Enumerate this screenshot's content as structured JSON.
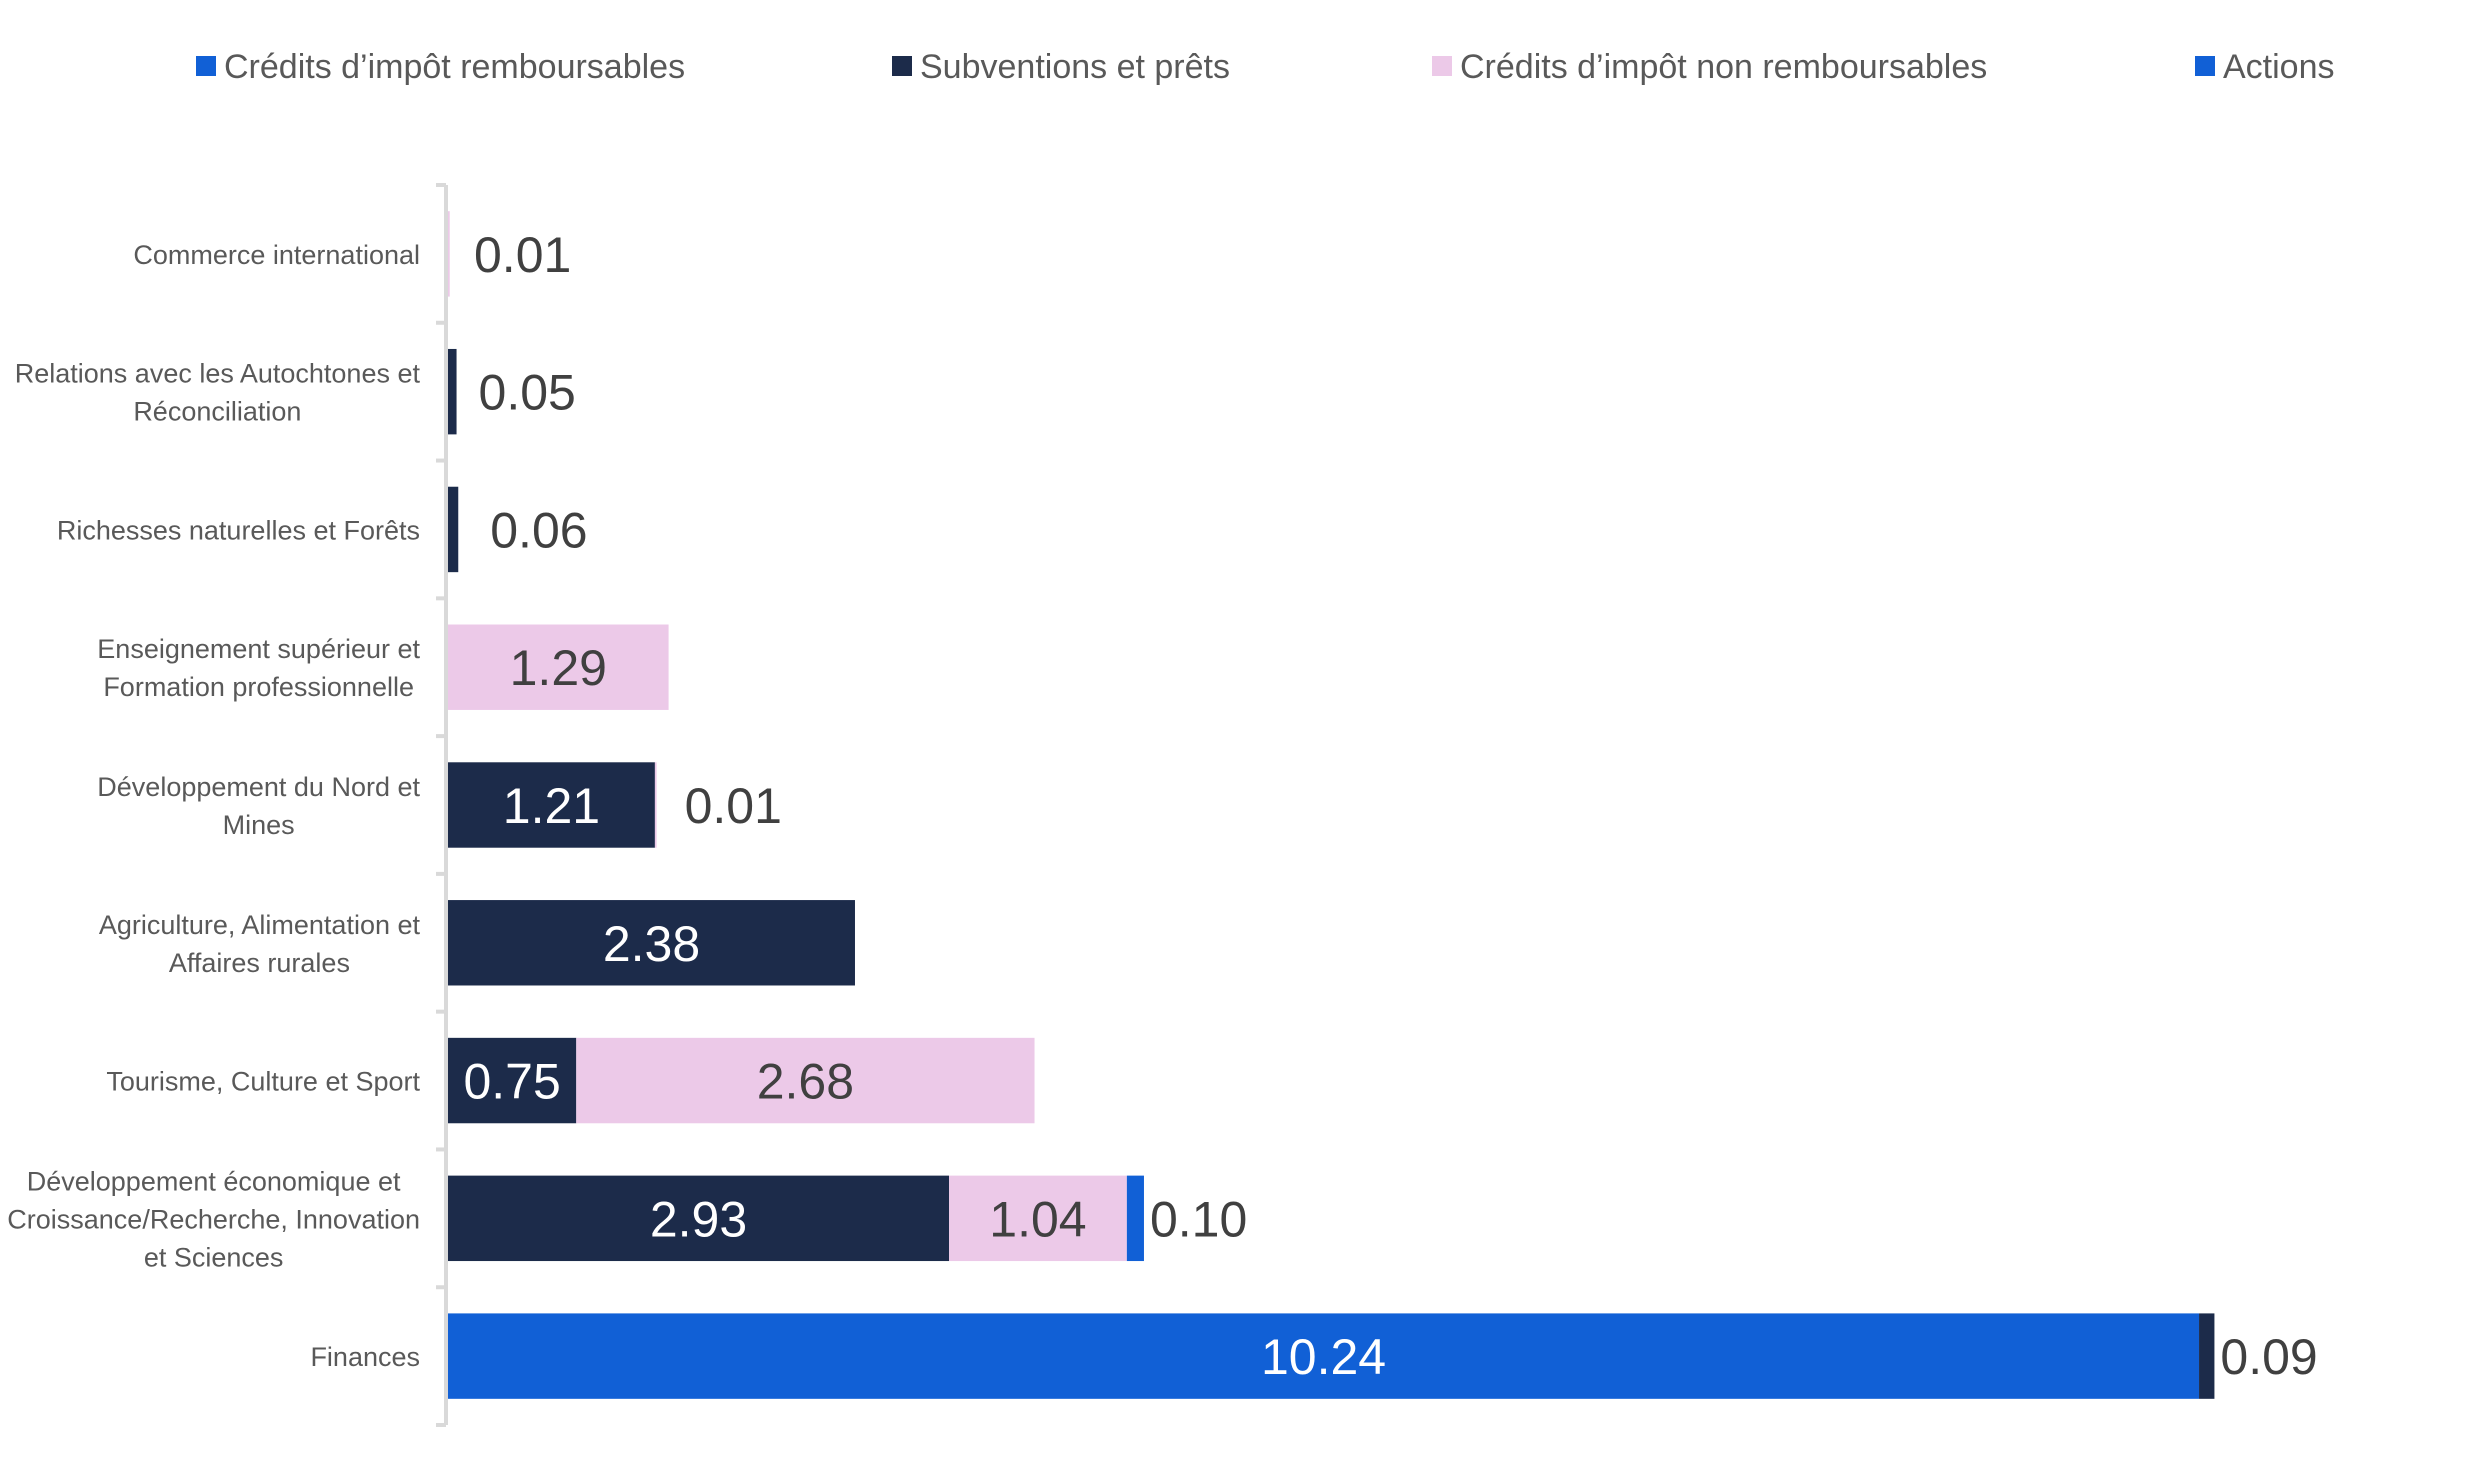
{
  "chart_data": {
    "type": "bar",
    "orientation": "horizontal",
    "stacked": true,
    "title": "",
    "xlabel": "",
    "ylabel": "",
    "xlim": [
      0,
      10.5
    ],
    "grid": false,
    "legend_position": "top",
    "categories": [
      [
        "Commerce international"
      ],
      [
        "Relations avec les Autochtones et",
        "Réconciliation"
      ],
      [
        "Richesses naturelles et Forêts"
      ],
      [
        "Enseignement supérieur et",
        "Formation professionnelle"
      ],
      [
        "Développement du Nord et",
        "Mines"
      ],
      [
        "Agriculture, Alimentation et",
        "Affaires rurales"
      ],
      [
        "Tourisme, Culture et Sport"
      ],
      [
        "Développement économique et",
        "Croissance/Recherche, Innovation",
        "et Sciences"
      ],
      [
        "Finances"
      ]
    ],
    "series": [
      {
        "name": "Crédits d’impôt remboursables",
        "color": "#1160d6",
        "values": [
          0,
          0,
          0,
          0,
          0,
          0,
          0,
          0,
          10.24
        ]
      },
      {
        "name": "Subventions et prêts",
        "color": "#1c2b4a",
        "values": [
          0,
          0.05,
          0.06,
          0,
          1.21,
          2.38,
          0.75,
          2.93,
          0.09
        ]
      },
      {
        "name": "Crédits d’impôt non remboursables",
        "color": "#ecc9e8",
        "values": [
          0.01,
          0,
          0,
          1.29,
          0.01,
          0,
          2.68,
          1.04,
          0
        ]
      },
      {
        "name": "Actions",
        "color": "#1160d6",
        "values": [
          0,
          0,
          0,
          0,
          0,
          0,
          0,
          0.1,
          0
        ]
      }
    ],
    "data_labels": [
      [
        {
          "series": 2,
          "text": "0.01",
          "position": "outside"
        }
      ],
      [
        {
          "series": 1,
          "text": "0.05",
          "position": "outside"
        }
      ],
      [
        {
          "series": 1,
          "text": "0.06",
          "position": "outside"
        }
      ],
      [
        {
          "series": 2,
          "text": "1.29",
          "position": "inside"
        }
      ],
      [
        {
          "series": 1,
          "text": "1.21",
          "position": "inside"
        },
        {
          "series": 2,
          "text": "0.01",
          "position": "outside"
        }
      ],
      [
        {
          "series": 1,
          "text": "2.38",
          "position": "inside"
        }
      ],
      [
        {
          "series": 1,
          "text": "0.75",
          "position": "inside"
        },
        {
          "series": 2,
          "text": "2.68",
          "position": "inside"
        }
      ],
      [
        {
          "series": 1,
          "text": "2.93",
          "position": "inside"
        },
        {
          "series": 2,
          "text": "1.04",
          "position": "inside"
        },
        {
          "series": 3,
          "text": "0.10",
          "position": "outside"
        }
      ],
      [
        {
          "series": 0,
          "text": "10.24",
          "position": "inside"
        },
        {
          "series": 1,
          "text": "0.09",
          "position": "outside"
        }
      ]
    ]
  },
  "colors": {
    "text": "#595959",
    "value_dark": "#404040",
    "value_light": "#ffffff",
    "axis": "#d9d9d9"
  }
}
